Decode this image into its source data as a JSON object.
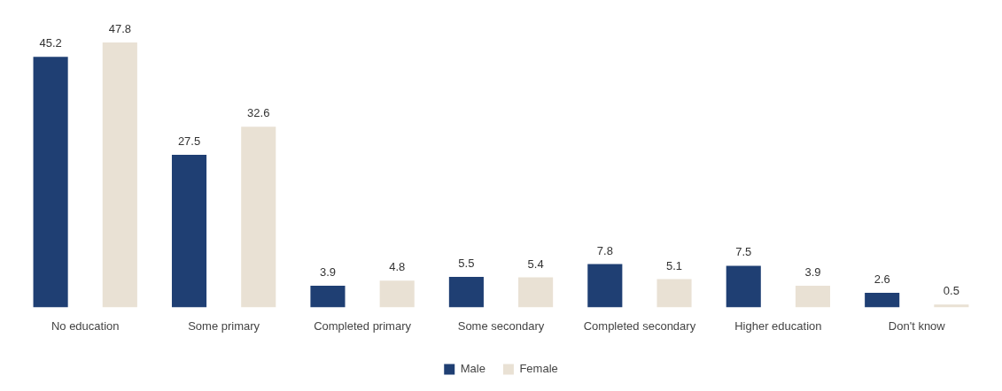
{
  "chart_data": {
    "type": "bar",
    "categories": [
      "No education",
      "Some primary",
      "Completed primary",
      "Some secondary",
      "Completed secondary",
      "Higher education",
      "Don't know"
    ],
    "series": [
      {
        "name": "Male",
        "color": "#1f3f73",
        "values": [
          45.2,
          27.5,
          3.9,
          5.5,
          7.8,
          7.5,
          2.6
        ]
      },
      {
        "name": "Female",
        "color": "#e9e1d4",
        "values": [
          47.8,
          32.6,
          4.8,
          5.4,
          5.1,
          3.9,
          0.5
        ]
      }
    ],
    "data_labels": true,
    "legend": "bottom",
    "grid": false
  }
}
